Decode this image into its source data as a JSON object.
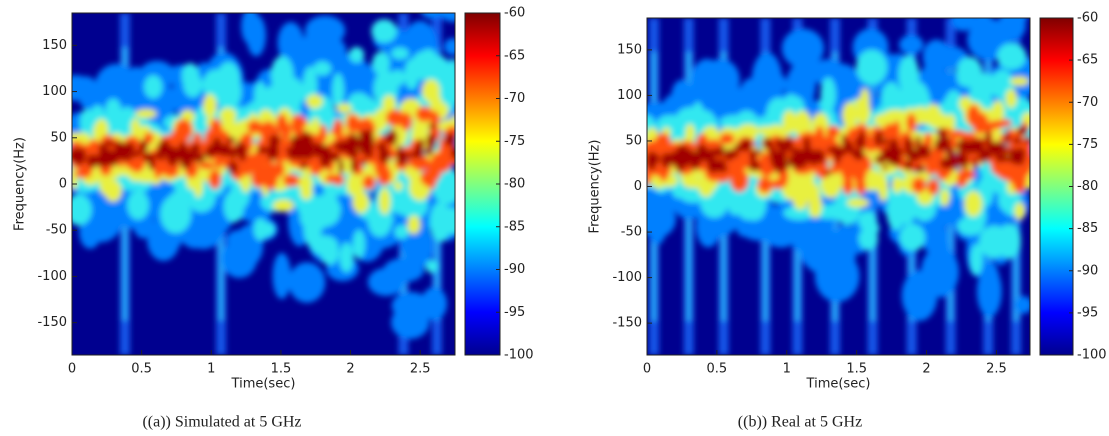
{
  "chart_data": [
    {
      "type": "heatmap",
      "xlabel": "Time(sec)",
      "ylabel": "Frequency(Hz)",
      "xlim": [
        0,
        2.75
      ],
      "xticks": [
        0,
        0.5,
        1,
        1.5,
        2,
        2.5
      ],
      "ylim": [
        -185,
        185
      ],
      "yticks": [
        -150,
        -100,
        -50,
        0,
        50,
        100,
        150
      ],
      "colorbar_lim": [
        -100,
        -60
      ],
      "colorbar_ticks": [
        -100,
        -95,
        -90,
        -85,
        -80,
        -75,
        -70,
        -65,
        -60
      ],
      "caption": "((a)) Simulated at 5 GHz"
    },
    {
      "type": "heatmap",
      "xlabel": "Time(sec)",
      "ylabel": "Frequency(Hz)",
      "xlim": [
        0,
        2.74
      ],
      "xticks": [
        0,
        0.5,
        1,
        1.5,
        2,
        2.5
      ],
      "ylim": [
        -185,
        185
      ],
      "yticks": [
        -150,
        -100,
        -50,
        0,
        50,
        100,
        150
      ],
      "colorbar_lim": [
        -100,
        -60
      ],
      "colorbar_ticks": [
        -100,
        -95,
        -90,
        -85,
        -80,
        -75,
        -70,
        -65,
        -60
      ],
      "caption": "((b)) Real at 5 GHz"
    }
  ]
}
